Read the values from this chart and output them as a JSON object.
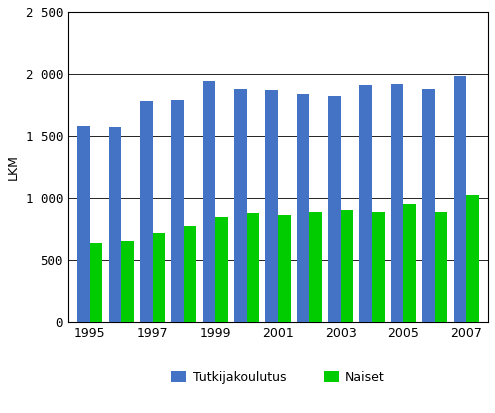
{
  "years": [
    1995,
    1996,
    1997,
    1998,
    1999,
    2000,
    2001,
    2002,
    2003,
    2004,
    2005,
    2006,
    2007
  ],
  "tutkijakoulutus": [
    1580,
    1575,
    1780,
    1790,
    1940,
    1880,
    1870,
    1840,
    1820,
    1910,
    1920,
    1880,
    1980
  ],
  "naiset": [
    640,
    650,
    720,
    775,
    850,
    880,
    860,
    890,
    900,
    890,
    955,
    890,
    1025
  ],
  "bar_color_blue": "#4472C4",
  "bar_color_green": "#00CC00",
  "ylabel": "LKM",
  "ylim": [
    0,
    2500
  ],
  "yticks": [
    0,
    500,
    1000,
    1500,
    2000,
    2500
  ],
  "ytick_labels": [
    "0",
    "500",
    "1 000",
    "1 500",
    "2 000",
    "2 500"
  ],
  "xtick_years": [
    1995,
    1997,
    1999,
    2001,
    2003,
    2005,
    2007
  ],
  "legend_tutkijakoulutus": "Tutkijakoulutus",
  "legend_naiset": "Naiset",
  "background_color": "#FFFFFF",
  "plot_bg_color": "#FFFFFF",
  "grid_color": "#000000",
  "border_color": "#808080"
}
